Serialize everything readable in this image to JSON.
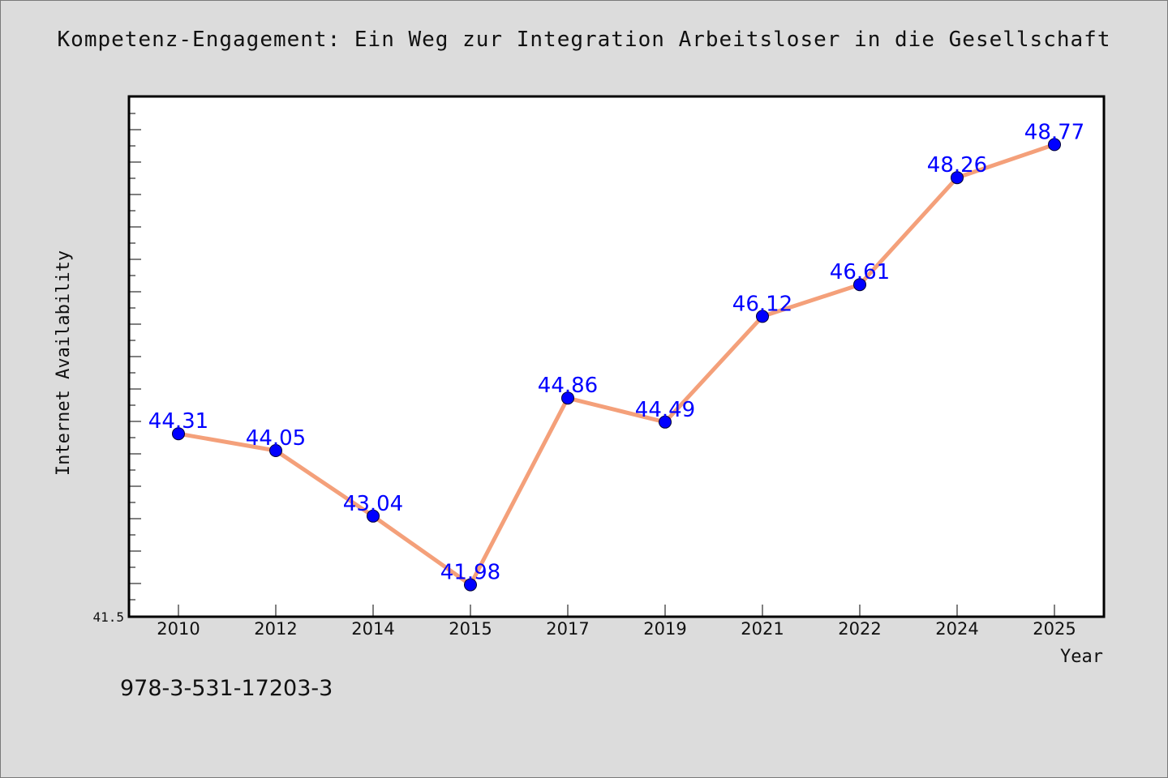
{
  "isbn": "978-3-531-17203-3",
  "chart_data": {
    "type": "line",
    "title": "Kompetenz-Engagement: Ein Weg zur Integration Arbeitsloser in die Gesellschaft",
    "xlabel": "Year",
    "ylabel": "Internet Availability",
    "categories": [
      "2010",
      "2012",
      "2014",
      "2015",
      "2017",
      "2019",
      "2021",
      "2022",
      "2024",
      "2025"
    ],
    "series": [
      {
        "values": [
          44.31,
          44.05,
          43.04,
          41.98,
          44.86,
          44.49,
          46.12,
          46.61,
          48.26,
          48.77
        ],
        "labels": [
          "44.31",
          "44.05",
          "43.04",
          "41.98",
          "44.86",
          "44.49",
          "46.12",
          "46.61",
          "48.26",
          "48.77"
        ]
      }
    ],
    "ylim": [
      41.5,
      49.5
    ],
    "ytick_labels": [
      "41.5"
    ],
    "grid": false,
    "line_color": "#f4a07a",
    "marker_color": "#0000ff"
  }
}
